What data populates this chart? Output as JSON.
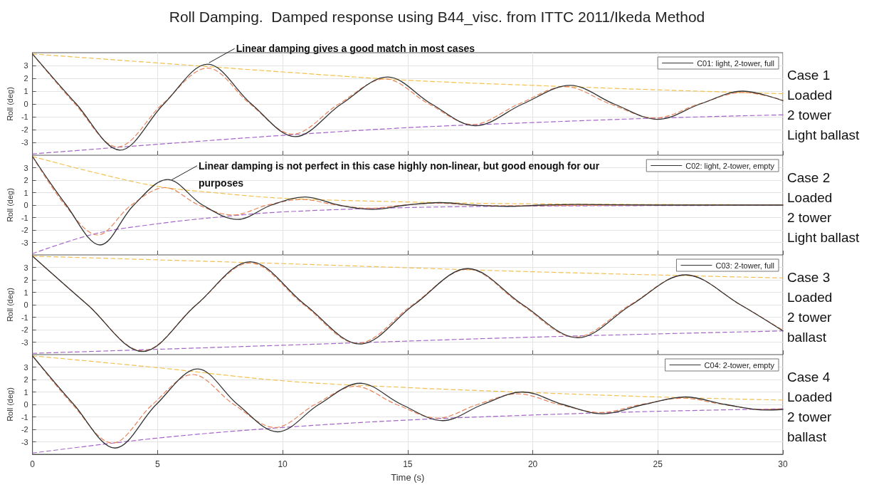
{
  "chart_data": [
    {
      "type": "line",
      "title": "Roll Damping.  Damped response using B44_visc. from ITTC 2011/Ikeda Method",
      "ylabel": "Roll (deg)",
      "xlim": [
        0,
        30
      ],
      "xticks": [
        0,
        5,
        10,
        15,
        20,
        25,
        30
      ],
      "ylim": [
        -4,
        4
      ],
      "yticks": [
        -3,
        -2,
        -1,
        0,
        1,
        2,
        3
      ],
      "grid": true,
      "legend": "top right",
      "tick_labels": "y",
      "marker": "none",
      "annotations": [
        {
          "text": "Linear damping gives a good match in most cases",
          "x": 7.0,
          "y": 3.1
        },
        "Case 1",
        "Loaded",
        "2 tower",
        "Light ballast"
      ],
      "series": [
        {
          "color": "#f2c14e",
          "line_style": "dashed",
          "x": [
            0,
            5,
            10,
            15,
            20,
            25,
            30
          ],
          "values": [
            3.9,
            3.2,
            2.5,
            1.85,
            1.45,
            1.1,
            0.8
          ]
        },
        {
          "color": "#a566c8",
          "line_style": "dashed",
          "x": [
            0,
            5,
            10,
            15,
            20,
            25,
            30
          ],
          "values": [
            -3.9,
            -3.15,
            -2.45,
            -1.85,
            -1.45,
            -1.1,
            -0.85
          ]
        },
        {
          "color": "#e8845a",
          "line_style": "dashed",
          "x": [
            0,
            1.7,
            3.4,
            5.2,
            7.0,
            8.7,
            10.4,
            12.25,
            14.1,
            15.85,
            17.6,
            19.45,
            21.3,
            23.1,
            24.9,
            26.65,
            28.4,
            30
          ],
          "values": [
            3.9,
            0,
            -3.35,
            0,
            2.8,
            0,
            -2.35,
            0,
            1.95,
            0,
            -1.6,
            0,
            1.35,
            0,
            -1.1,
            0,
            0.9,
            0.3
          ]
        },
        {
          "name": "C01: light, 2-tower, full",
          "color": "#333333",
          "line_style": "solid",
          "x": [
            0,
            1.75,
            3.5,
            5.25,
            7.0,
            8.75,
            10.5,
            12.35,
            14.2,
            15.95,
            17.7,
            19.6,
            21.5,
            23.25,
            25.0,
            26.7,
            28.4,
            30
          ],
          "values": [
            3.9,
            0,
            -3.6,
            0,
            3.1,
            0,
            -2.55,
            0,
            2.1,
            0,
            -1.7,
            0,
            1.45,
            0,
            -1.2,
            0,
            1.0,
            0.25
          ]
        }
      ]
    },
    {
      "type": "line",
      "ylabel": "Roll (deg)",
      "xlim": [
        0,
        30
      ],
      "xticks": [
        0,
        5,
        10,
        15,
        20,
        25,
        30
      ],
      "ylim": [
        -4,
        4
      ],
      "yticks": [
        -3,
        -2,
        -1,
        0,
        1,
        2,
        3
      ],
      "grid": true,
      "legend": "top right",
      "tick_labels": "y",
      "marker": "none",
      "annotations": [
        {
          "text": "Linear damping is not perfect in this case highly non-linear, but good enough for our purposes",
          "x": 5.5,
          "y": 1.9
        },
        "Case 2",
        "Loaded",
        "2 tower",
        "Light ballast"
      ],
      "series": [
        {
          "color": "#f2c14e",
          "line_style": "dashed",
          "x": [
            0,
            2.5,
            5,
            7.5,
            10,
            15,
            20,
            30
          ],
          "values": [
            3.9,
            2.6,
            1.5,
            0.95,
            0.55,
            0.25,
            0.1,
            0.02
          ]
        },
        {
          "color": "#a566c8",
          "line_style": "dashed",
          "x": [
            0,
            2.5,
            5,
            7.5,
            10,
            15,
            20,
            30
          ],
          "values": [
            -3.9,
            -2.3,
            -1.5,
            -0.95,
            -0.55,
            -0.2,
            -0.08,
            -0.02
          ]
        },
        {
          "color": "#e8845a",
          "line_style": "dashed",
          "x": [
            0,
            1.3,
            2.6,
            3.95,
            5.3,
            6.65,
            8.0,
            9.4,
            10.8,
            12.15,
            13.5,
            14.85,
            16.2,
            17.6,
            19.0,
            25,
            30
          ],
          "values": [
            3.9,
            0,
            -2.4,
            0,
            1.4,
            0,
            -0.8,
            0,
            0.45,
            0,
            -0.25,
            0,
            0.15,
            0,
            -0.05,
            0,
            0
          ]
        },
        {
          "name": "C02: light, 2-tower, empty",
          "color": "#333333",
          "line_style": "solid",
          "x": [
            0,
            1.35,
            2.7,
            4.05,
            5.4,
            6.8,
            8.2,
            9.55,
            10.9,
            12.25,
            13.6,
            14.95,
            16.3,
            17.65,
            19.0,
            20.4,
            21.8,
            25,
            30
          ],
          "values": [
            3.9,
            0,
            -3.2,
            0,
            2.05,
            0,
            -1.15,
            0,
            0.65,
            0,
            -0.35,
            0,
            0.2,
            0,
            -0.1,
            0,
            0.05,
            0,
            0
          ]
        }
      ]
    },
    {
      "type": "line",
      "ylabel": "Roll (deg)",
      "xlim": [
        0,
        30
      ],
      "xticks": [
        0,
        5,
        10,
        15,
        20,
        25,
        30
      ],
      "ylim": [
        -4,
        4
      ],
      "yticks": [
        -3,
        -2,
        -1,
        0,
        1,
        2,
        3
      ],
      "grid": true,
      "legend": "top right",
      "tick_labels": "y",
      "marker": "none",
      "annotations": [
        "Case 3",
        "Loaded",
        "2 tower",
        "ballast"
      ],
      "series": [
        {
          "color": "#f2c14e",
          "line_style": "dashed",
          "x": [
            0,
            10,
            20,
            30
          ],
          "values": [
            3.9,
            3.3,
            2.65,
            2.15
          ]
        },
        {
          "color": "#a566c8",
          "line_style": "dashed",
          "x": [
            0,
            10,
            20,
            30
          ],
          "values": [
            -3.9,
            -3.25,
            -2.6,
            -2.1
          ]
        },
        {
          "color": "#e8845a",
          "line_style": "dashed",
          "x": [
            0,
            2.2,
            4.4,
            6.55,
            8.7,
            10.85,
            13.0,
            15.2,
            17.4,
            19.55,
            21.7,
            23.9,
            26.1,
            28.3,
            30
          ],
          "values": [
            3.9,
            0,
            -3.7,
            0,
            3.35,
            0,
            -3.1,
            0,
            2.85,
            0,
            -2.6,
            0,
            2.4,
            0,
            -2.05
          ]
        },
        {
          "name": "C03: 2-tower, full",
          "color": "#333333",
          "line_style": "solid",
          "x": [
            0,
            2.2,
            4.4,
            6.55,
            8.7,
            10.9,
            13.1,
            15.25,
            17.4,
            19.6,
            21.8,
            23.95,
            26.1,
            28.3,
            30
          ],
          "values": [
            3.9,
            0,
            -3.75,
            0,
            3.45,
            0,
            -3.15,
            0,
            2.9,
            0,
            -2.65,
            0,
            2.4,
            0,
            -2.1
          ]
        }
      ]
    },
    {
      "type": "line",
      "xlabel": "Time (s)",
      "ylabel": "Roll (deg)",
      "xlim": [
        0,
        30
      ],
      "xticks": [
        0,
        5,
        10,
        15,
        20,
        25,
        30
      ],
      "ylim": [
        -4,
        4
      ],
      "yticks": [
        -3,
        -2,
        -1,
        0,
        1,
        2,
        3
      ],
      "grid": true,
      "legend": "top right",
      "marker": "none",
      "annotations": [
        "Case 4",
        "Loaded",
        "2 tower",
        "ballast"
      ],
      "series": [
        {
          "color": "#f2c14e",
          "line_style": "dashed",
          "x": [
            0,
            5,
            10,
            15,
            20,
            25,
            30
          ],
          "values": [
            3.9,
            2.95,
            1.9,
            1.35,
            0.95,
            0.6,
            0.35
          ]
        },
        {
          "color": "#a566c8",
          "line_style": "dashed",
          "x": [
            0,
            5,
            10,
            15,
            20,
            25,
            30
          ],
          "values": [
            -3.9,
            -2.7,
            -1.85,
            -1.25,
            -0.85,
            -0.55,
            -0.35
          ]
        },
        {
          "color": "#e8845a",
          "line_style": "dashed",
          "x": [
            0,
            1.6,
            3.2,
            4.8,
            6.4,
            8.05,
            9.7,
            11.3,
            12.9,
            14.55,
            16.2,
            17.8,
            19.4,
            21.05,
            22.7,
            24.35,
            26.0,
            27.6,
            29.2,
            30
          ],
          "values": [
            3.9,
            0,
            -3.1,
            0,
            2.4,
            0,
            -1.85,
            0,
            1.45,
            0,
            -1.1,
            0,
            0.85,
            0,
            -0.65,
            0,
            0.5,
            0,
            -0.4,
            -0.35
          ]
        },
        {
          "name": "C04: 2-tower, empty",
          "color": "#333333",
          "line_style": "solid",
          "x": [
            0,
            1.65,
            3.3,
            4.95,
            6.6,
            8.2,
            9.8,
            11.45,
            13.1,
            14.75,
            16.4,
            18.0,
            19.6,
            21.2,
            22.8,
            24.45,
            26.1,
            27.7,
            29.3,
            30
          ],
          "values": [
            3.9,
            0,
            -3.5,
            0,
            2.85,
            0,
            -2.2,
            0,
            1.7,
            0,
            -1.3,
            0,
            1.0,
            0,
            -0.75,
            0,
            0.6,
            0,
            -0.45,
            -0.4
          ]
        }
      ]
    }
  ]
}
